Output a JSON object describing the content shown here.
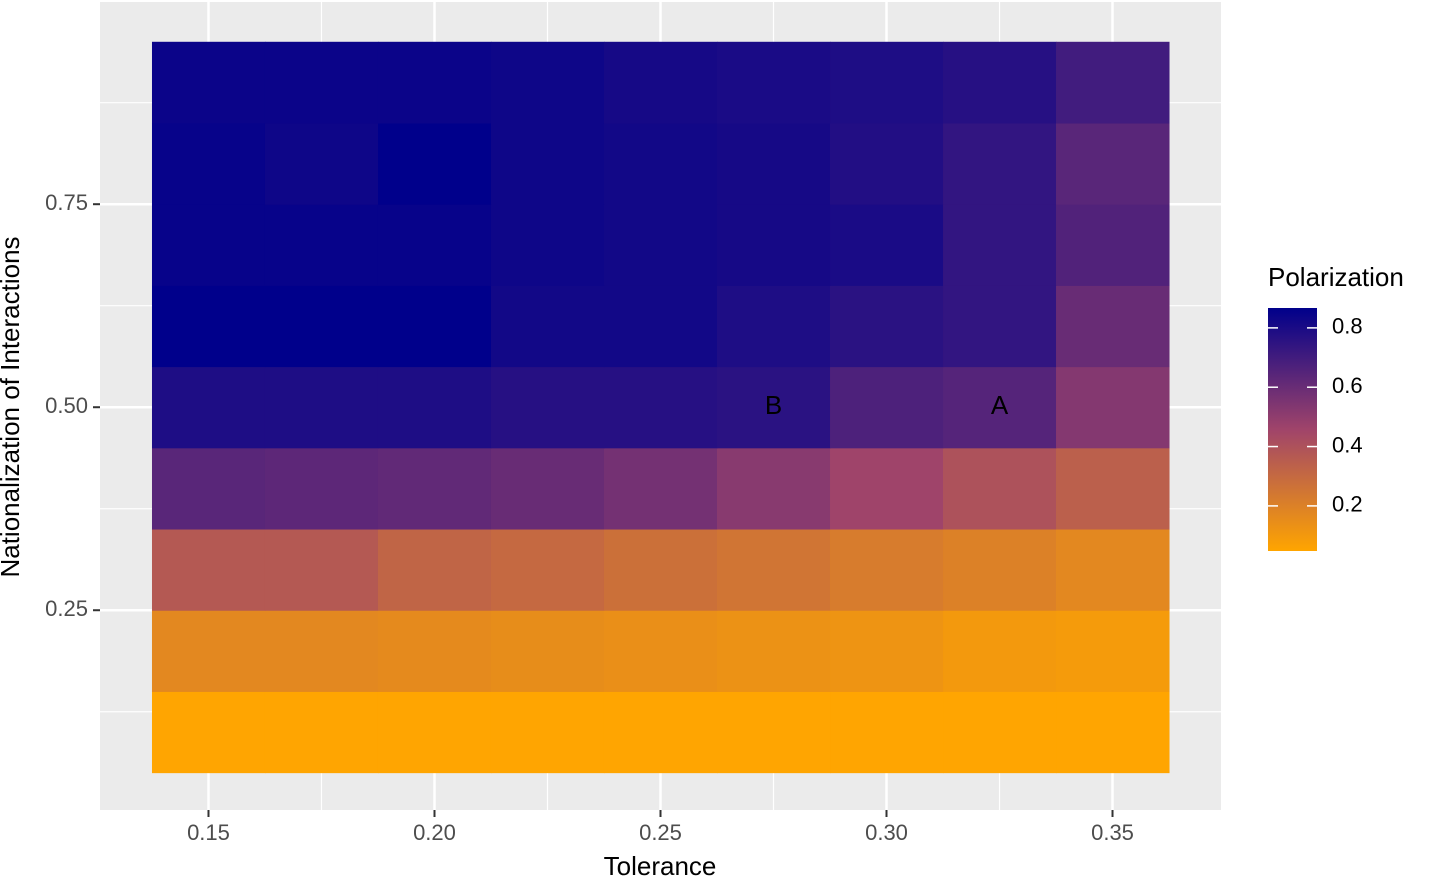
{
  "chart_data": {
    "type": "heatmap",
    "x_label": "Tolerance",
    "y_label": "Nationalization of Interactions",
    "x": [
      0.15,
      0.175,
      0.2,
      0.225,
      0.25,
      0.275,
      0.3,
      0.325,
      0.35
    ],
    "y": [
      0.1,
      0.2,
      0.3,
      0.4,
      0.5,
      0.6,
      0.7,
      0.8,
      0.9
    ],
    "z": [
      [
        0.05,
        0.05,
        0.05,
        0.05,
        0.05,
        0.05,
        0.05,
        0.05,
        0.05
      ],
      [
        0.17,
        0.17,
        0.16,
        0.15,
        0.14,
        0.13,
        0.12,
        0.1,
        0.09
      ],
      [
        0.37,
        0.37,
        0.32,
        0.3,
        0.27,
        0.25,
        0.22,
        0.2,
        0.17
      ],
      [
        0.64,
        0.63,
        0.62,
        0.6,
        0.57,
        0.52,
        0.46,
        0.4,
        0.34
      ],
      [
        0.79,
        0.79,
        0.79,
        0.77,
        0.77,
        0.76,
        0.67,
        0.65,
        0.53
      ],
      [
        0.87,
        0.87,
        0.87,
        0.82,
        0.82,
        0.79,
        0.76,
        0.74,
        0.6
      ],
      [
        0.85,
        0.85,
        0.85,
        0.83,
        0.82,
        0.81,
        0.8,
        0.74,
        0.66
      ],
      [
        0.85,
        0.83,
        0.87,
        0.83,
        0.82,
        0.81,
        0.78,
        0.74,
        0.64
      ],
      [
        0.84,
        0.84,
        0.84,
        0.83,
        0.81,
        0.8,
        0.79,
        0.77,
        0.7
      ]
    ],
    "xlim": [
      0.126,
      0.374
    ],
    "ylim": [
      0.004,
      0.999
    ],
    "xticks": [
      {
        "value": 0.15,
        "label": "0.15"
      },
      {
        "value": 0.2,
        "label": "0.20"
      },
      {
        "value": 0.25,
        "label": "0.25"
      },
      {
        "value": 0.3,
        "label": "0.30"
      },
      {
        "value": 0.35,
        "label": "0.35"
      }
    ],
    "yticks": [
      0.25,
      {
        "value": 0.5,
        "label": "0.50"
      },
      0.75
    ],
    "grid": true,
    "annotations": [
      {
        "text": "B",
        "x": 0.275,
        "y": 0.5
      },
      {
        "text": "A",
        "x": 0.325,
        "y": 0.5
      }
    ],
    "colorbar": {
      "title": "Polarization",
      "limits": [
        0.048,
        0.867
      ],
      "ticks": [
        0.2,
        0.4,
        0.6,
        0.8
      ],
      "colors": [
        "#FFA500",
        "#A0446A",
        "#00008B"
      ]
    }
  }
}
